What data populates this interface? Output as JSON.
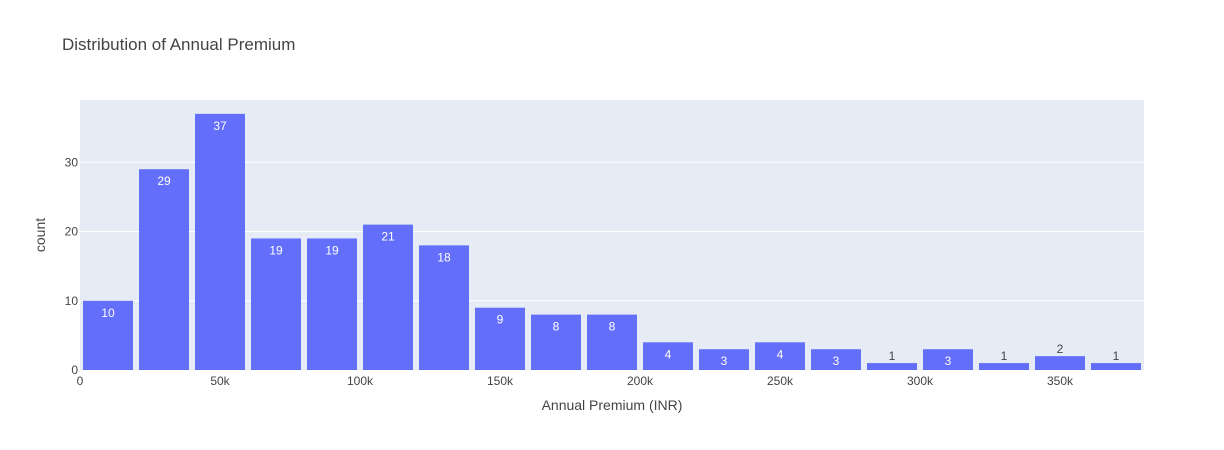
{
  "chart_data": {
    "type": "bar",
    "title": "Distribution of Annual Premium",
    "xlabel": "Annual Premium (INR)",
    "ylabel": "count",
    "bin_width": 20000,
    "bin_starts": [
      0,
      20000,
      40000,
      60000,
      80000,
      100000,
      120000,
      140000,
      160000,
      180000,
      200000,
      220000,
      240000,
      260000,
      280000,
      300000,
      320000,
      340000,
      360000
    ],
    "values": [
      10,
      29,
      37,
      19,
      19,
      21,
      18,
      9,
      8,
      8,
      4,
      3,
      4,
      3,
      1,
      3,
      1,
      2,
      1
    ],
    "data_labels": [
      "10",
      "29",
      "37",
      "19",
      "19",
      "21",
      "18",
      "9",
      "8",
      "8",
      "4",
      "3",
      "4",
      "3",
      "1",
      "3",
      "1",
      "2",
      "1"
    ],
    "xlim": [
      0,
      380000
    ],
    "ylim": [
      0,
      39
    ],
    "x_ticks": [
      {
        "value": 0,
        "label": "0"
      },
      {
        "value": 50000,
        "label": "50k"
      },
      {
        "value": 100000,
        "label": "100k"
      },
      {
        "value": 150000,
        "label": "150k"
      },
      {
        "value": 200000,
        "label": "200k"
      },
      {
        "value": 250000,
        "label": "250k"
      },
      {
        "value": 300000,
        "label": "300k"
      },
      {
        "value": 350000,
        "label": "350k"
      }
    ],
    "y_ticks": [
      {
        "value": 0,
        "label": "0"
      },
      {
        "value": 10,
        "label": "10"
      },
      {
        "value": 20,
        "label": "20"
      },
      {
        "value": 30,
        "label": "30"
      }
    ],
    "grid": true,
    "colors": {
      "bar": "#636efa",
      "plot_bg": "#e5ecf6",
      "grid": "#ffffff"
    }
  }
}
